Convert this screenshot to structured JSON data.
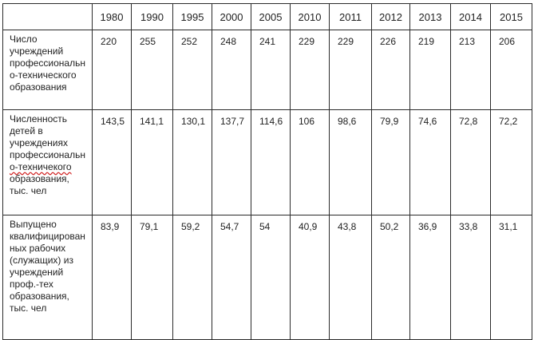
{
  "table": {
    "years": [
      "1980",
      "1990",
      "1995",
      "2000",
      "2005",
      "2010",
      "2011",
      "2012",
      "2013",
      "2014",
      "2015"
    ],
    "rows": [
      {
        "label_lines": [
          "Число",
          "учреждений",
          "профессиональн",
          "о-технического",
          "образования"
        ],
        "values": [
          "220",
          "255",
          "252",
          "248",
          "241",
          "229",
          "229",
          "226",
          "219",
          "213",
          "206"
        ]
      },
      {
        "label_lines": [
          "Численность",
          "детей в",
          "учреждениях",
          "профессиональн",
          "о-техничекого",
          "образования,",
          "тыс. чел"
        ],
        "values": [
          "143,5",
          "141,1",
          "130,1",
          "137,7",
          "114,6",
          "106",
          "98,6",
          "79,9",
          "74,6",
          "72,8",
          "72,2"
        ]
      },
      {
        "label_lines": [
          "Выпущено",
          "квалифицирован",
          "ных рабочих",
          "(служащих) из",
          "учреждений",
          "проф.-тех",
          "образования,",
          "тыс. чел"
        ],
        "values": [
          "83,9",
          "79,1",
          "59,2",
          "54,7",
          "54",
          "40,9",
          "43,8",
          "50,2",
          "36,9",
          "33,8",
          "31,1"
        ]
      }
    ]
  }
}
